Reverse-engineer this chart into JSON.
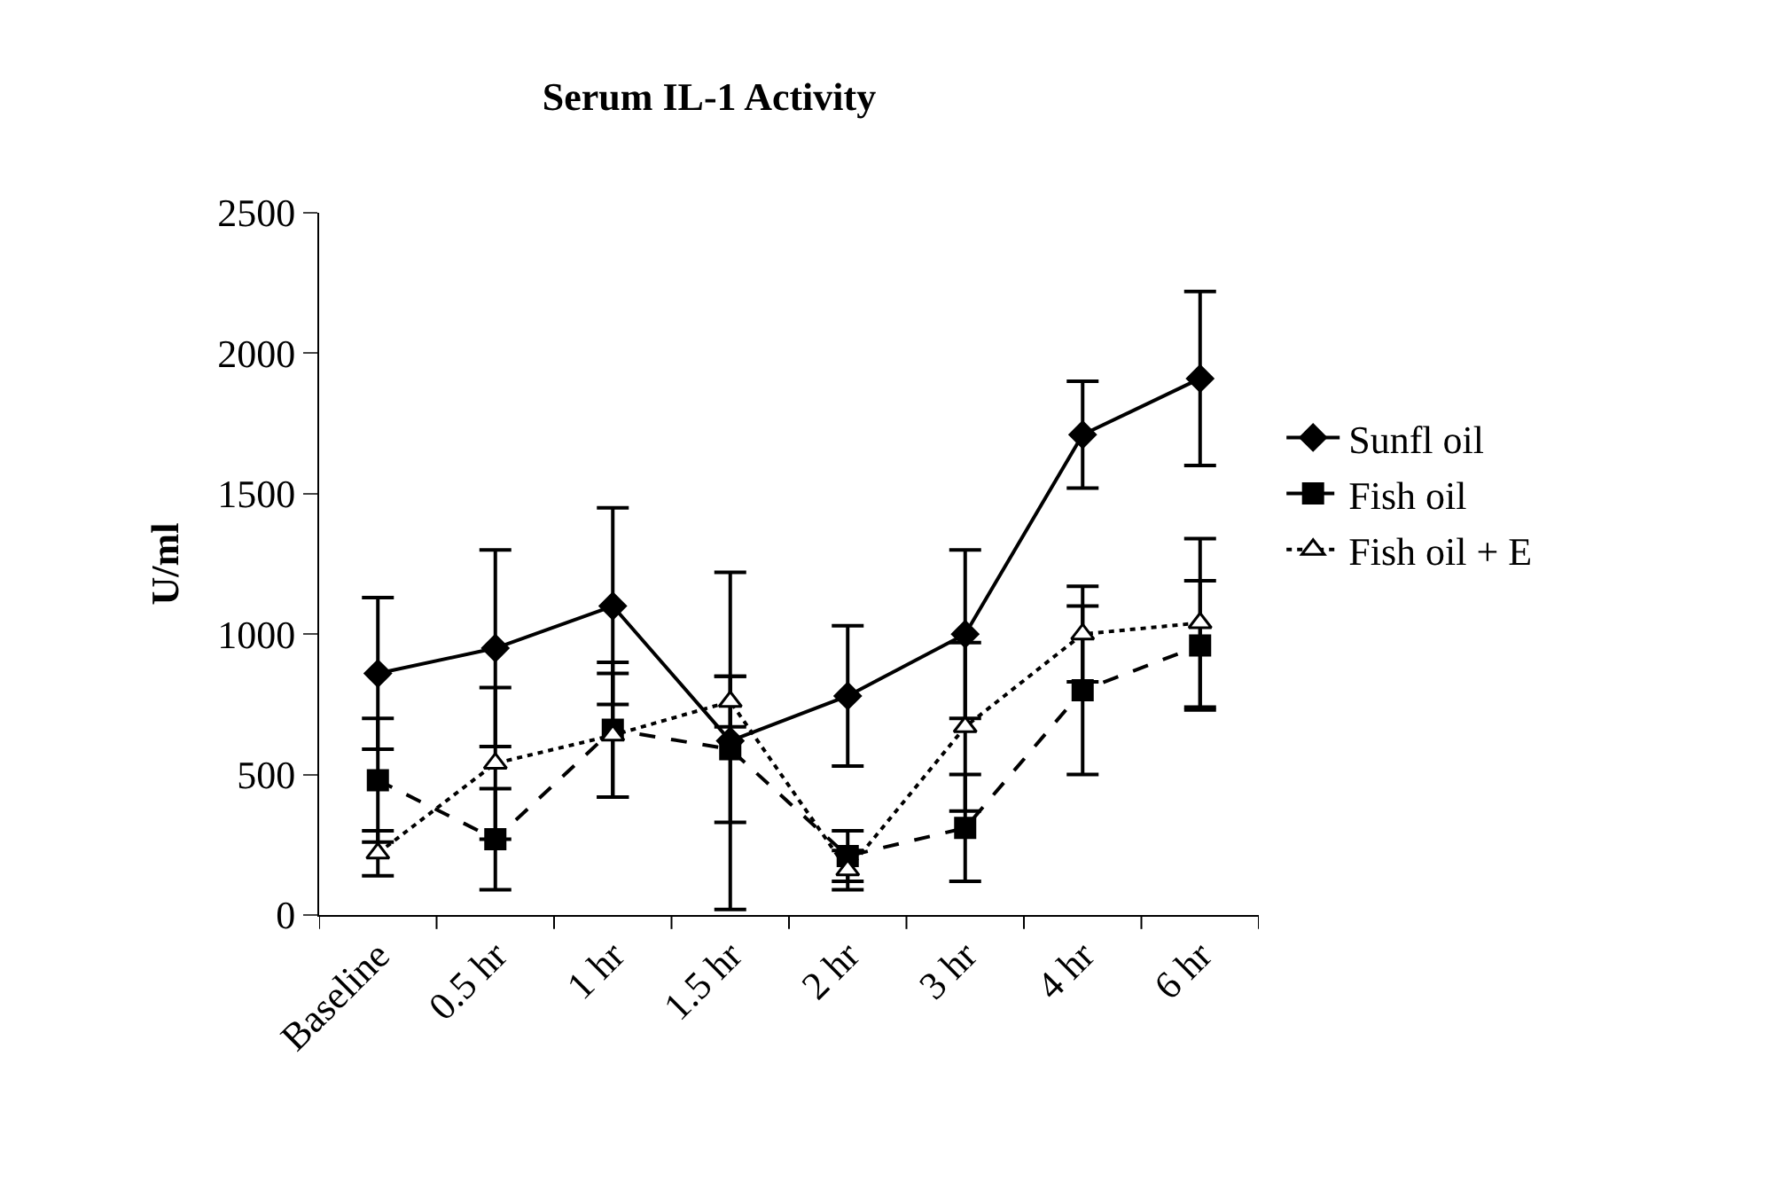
{
  "chart_data": {
    "type": "line",
    "title": "Serum IL-1 Activity",
    "ylabel": "U/ml",
    "categories": [
      "Baseline",
      "0.5 hr",
      "1 hr",
      "1.5 hr",
      "2 hr",
      "3 hr",
      "4 hr",
      "6 hr"
    ],
    "series": [
      {
        "name": "Sunfl oil",
        "color": "#000000",
        "marker": "diamond",
        "line_style": "solid",
        "values": [
          860,
          950,
          1100,
          620,
          780,
          1000,
          1710,
          1910
        ],
        "errors": [
          270,
          350,
          350,
          600,
          250,
          300,
          190,
          310
        ]
      },
      {
        "name": "Fish oil",
        "color": "#000000",
        "marker": "square",
        "line_style": "dashed",
        "values": [
          480,
          270,
          660,
          590,
          210,
          310,
          800,
          960
        ],
        "errors": [
          220,
          180,
          240,
          260,
          90,
          190,
          300,
          230
        ]
      },
      {
        "name": "Fish oil + E",
        "color": "#000000",
        "marker": "triangle",
        "line_style": "dotted",
        "values": [
          220,
          540,
          640,
          760,
          160,
          670,
          1000,
          1040
        ],
        "errors": [
          80,
          270,
          220,
          90,
          70,
          300,
          170,
          300
        ]
      }
    ],
    "ylim": [
      0,
      2500
    ],
    "yticks": [
      0,
      500,
      1000,
      1500,
      2000,
      2500
    ],
    "legend": "right"
  }
}
